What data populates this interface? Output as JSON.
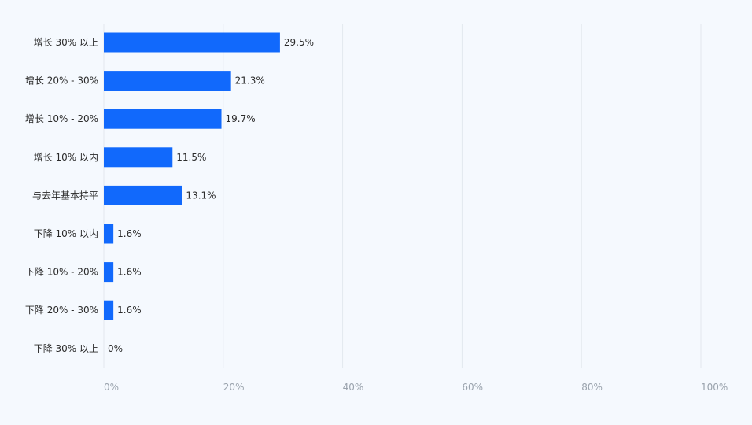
{
  "chart_data": {
    "type": "bar",
    "orientation": "horizontal",
    "categories": [
      "增长 30% 以上",
      "增长 20% - 30%",
      "增长 10% - 20%",
      "增长 10% 以内",
      "与去年基本持平",
      "下降 10% 以内",
      "下降 10% - 20%",
      "下降 20% - 30%",
      "下降 30% 以上"
    ],
    "values": [
      29.5,
      21.3,
      19.7,
      11.5,
      13.1,
      1.6,
      1.6,
      1.6,
      0
    ],
    "value_labels": [
      "29.5%",
      "21.3%",
      "19.7%",
      "11.5%",
      "13.1%",
      "1.6%",
      "1.6%",
      "1.6%",
      "0%"
    ],
    "xlim": [
      0,
      100
    ],
    "x_ticks": [
      "0%",
      "20%",
      "40%",
      "60%",
      "80%",
      "100%"
    ],
    "grid": true,
    "colors": {
      "bar": "#1169fc",
      "background": "#f5f9fe",
      "grid": "#e3e8ee"
    }
  }
}
